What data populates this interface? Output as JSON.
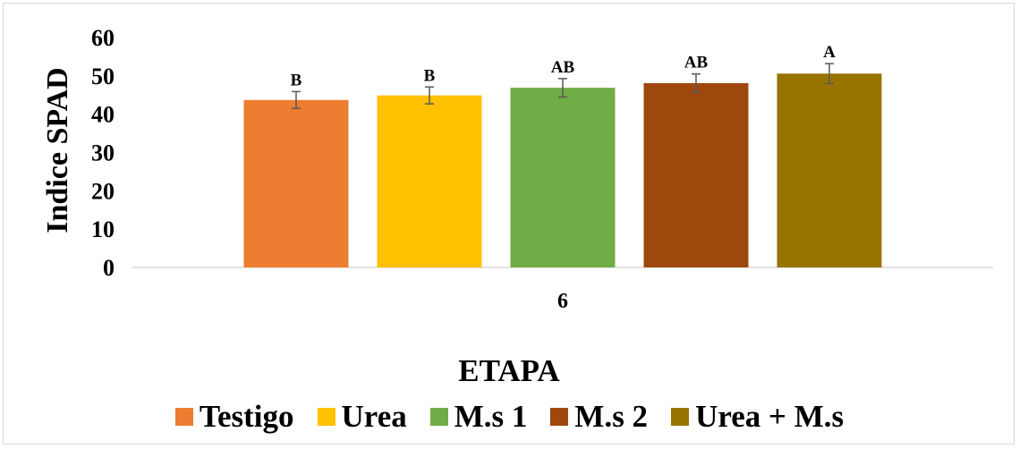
{
  "chart_data": {
    "type": "bar",
    "title": "",
    "xlabel": "ETAPA",
    "ylabel": "Indice SPAD",
    "ylim": [
      0,
      60
    ],
    "yticks": [
      "0",
      "10",
      "20",
      "30",
      "40",
      "50",
      "60"
    ],
    "categories": [
      "6"
    ],
    "grid": false,
    "legend_position": "bottom",
    "series": [
      {
        "name": "Testigo",
        "color": "#ED7D31",
        "values": [
          43.7
        ],
        "error": [
          2.2
        ],
        "label": "B"
      },
      {
        "name": "Urea",
        "color": "#FFC000",
        "values": [
          44.9
        ],
        "error": [
          2.2
        ],
        "label": "B"
      },
      {
        "name": "M.s 1",
        "color": "#70AD47",
        "values": [
          46.9
        ],
        "error": [
          2.4
        ],
        "label": "AB"
      },
      {
        "name": "M.s 2",
        "color": "#9E480E",
        "values": [
          48.1
        ],
        "error": [
          2.4
        ],
        "label": "AB"
      },
      {
        "name": "Urea + M.s",
        "color": "#997300",
        "values": [
          50.6
        ],
        "error": [
          2.6
        ],
        "label": "A"
      }
    ]
  }
}
